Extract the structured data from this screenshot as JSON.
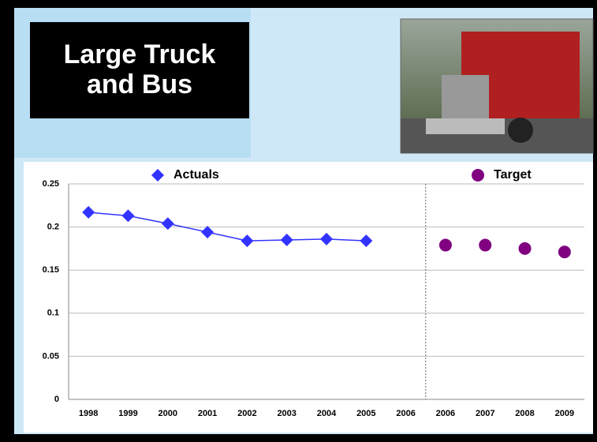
{
  "chart_data": {
    "type": "line",
    "title": "Large Truck and Bus",
    "categories": [
      "1998",
      "1999",
      "2000",
      "2001",
      "2002",
      "2003",
      "2004",
      "2005",
      "2006",
      "2006",
      "2007",
      "2008",
      "2009"
    ],
    "series": [
      {
        "name": "Actuals",
        "color": "#3333ff",
        "marker": "diamond",
        "line": true,
        "values": [
          0.217,
          0.213,
          0.204,
          0.194,
          0.184,
          0.185,
          0.186,
          0.184,
          null,
          null,
          null,
          null,
          null
        ]
      },
      {
        "name": "Target",
        "color": "#800080",
        "marker": "circle",
        "line": false,
        "values": [
          null,
          null,
          null,
          null,
          null,
          null,
          null,
          null,
          null,
          0.179,
          0.179,
          0.175,
          0.171
        ]
      }
    ],
    "ylim": [
      0,
      0.25
    ],
    "yticks": [
      0,
      0.05,
      0.1,
      0.15,
      0.2,
      0.25
    ],
    "grid": true
  }
}
